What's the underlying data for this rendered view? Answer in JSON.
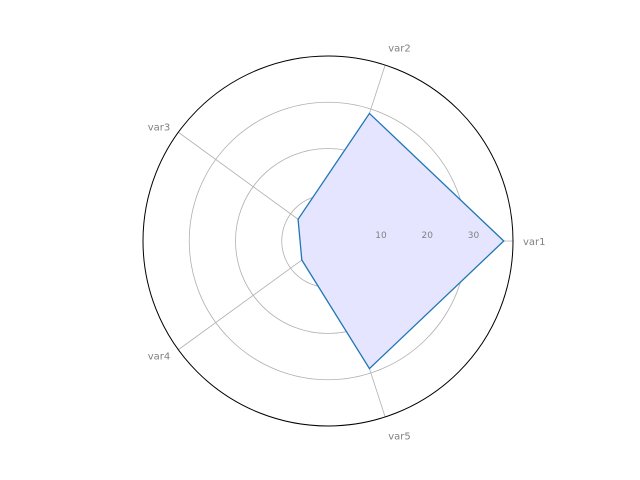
{
  "chart_data": {
    "type": "radar",
    "categories": [
      "var1",
      "var2",
      "var3",
      "var4",
      "var5"
    ],
    "series": [
      {
        "values": [
          38,
          29,
          8,
          7,
          29
        ]
      }
    ],
    "rlim": [
      0,
      40
    ],
    "rticks": [
      10,
      20,
      30
    ],
    "rtick_labels": [
      "10",
      "20",
      "30"
    ],
    "grid": true,
    "colors": {
      "line": "#1f77b4",
      "fill": "#e5e5ff",
      "grid": "#b0b0b0",
      "frame": "#000000",
      "text": "#808080"
    }
  }
}
